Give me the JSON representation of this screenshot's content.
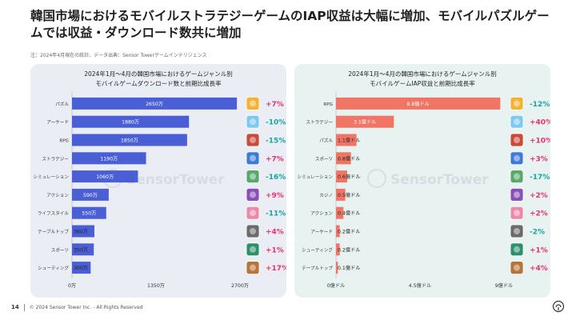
{
  "page": {
    "title": "韓国市場におけるモバイルストラテジーゲームのIAP収益は大幅に増加、モバイルパズルゲームでは収益・ダウンロード数共に増加",
    "note": "注：2024年4月現在の統計、データ出典：Sensor Towerゲームインテリジェンス",
    "footer_page": "14",
    "footer_copy": "© 2024 Sensor Tower Inc. - All Rights Reserved",
    "watermark": "SensorTower"
  },
  "chart_data": [
    {
      "type": "bar",
      "orientation": "horizontal",
      "title": "2024年1月～4月の韓国市場におけるゲームジャンル別",
      "subtitle": "モバイルゲームダウンロード数と前期比成長率",
      "categories": [
        "パズル",
        "アーケード",
        "RPG",
        "ストラテジー",
        "シミュレーション",
        "アクション",
        "ライフスタイル",
        "テーブルトップ",
        "スポーツ",
        "シューティング"
      ],
      "values": [
        2650,
        1880,
        1850,
        1190,
        1060,
        590,
        550,
        360,
        350,
        300
      ],
      "value_labels": [
        "2650万",
        "1880万",
        "1850万",
        "1190万",
        "1060万",
        "590万",
        "550万",
        "360万",
        "350万",
        "300万"
      ],
      "growth": [
        "+7%",
        "-10%",
        "-15%",
        "+7%",
        "-16%",
        "+9%",
        "-11%",
        "+4%",
        "+1%",
        "+17%"
      ],
      "xlim": [
        0,
        2700
      ],
      "x_ticks": [
        0,
        1350,
        2700
      ],
      "x_tick_labels": [
        "0万",
        "1350万",
        "2700万"
      ],
      "bar_color": "#4a5fd6"
    },
    {
      "type": "bar",
      "orientation": "horizontal",
      "title": "2024年1月～4月の韓国市場におけるゲームジャンル別",
      "subtitle": "モバイルゲームIAP収益と前期比成長率",
      "categories": [
        "RPG",
        "ストラテジー",
        "パズル",
        "スポーツ",
        "シミュレーション",
        "カジノ",
        "アクション",
        "アーケード",
        "シューティング",
        "テーブルトップ"
      ],
      "values": [
        8.8,
        3.1,
        1.1,
        0.8,
        0.6,
        0.5,
        0.4,
        0.2,
        0.2,
        0.1
      ],
      "value_labels": [
        "8.8億ドル",
        "3.1億ドル",
        "1.1億ドル",
        "0.8億ドル",
        "0.6億ドル",
        "0.5億ドル",
        "0.4億ドル",
        "0.2億ドル",
        "0.2億ドル",
        "0.1億ドル"
      ],
      "growth": [
        "-12%",
        "+40%",
        "+10%",
        "+3%",
        "-17%",
        "+2%",
        "+2%",
        "-2%",
        "+1%",
        "+4%"
      ],
      "xlim": [
        0,
        9
      ],
      "x_ticks": [
        0,
        4.5,
        9
      ],
      "x_tick_labels": [
        "0億ドル",
        "4.5億ドル",
        "9億ドル"
      ],
      "bar_color": "#f07565"
    }
  ],
  "colors": {
    "positive": "#e8336b",
    "negative": "#16a6a0"
  }
}
